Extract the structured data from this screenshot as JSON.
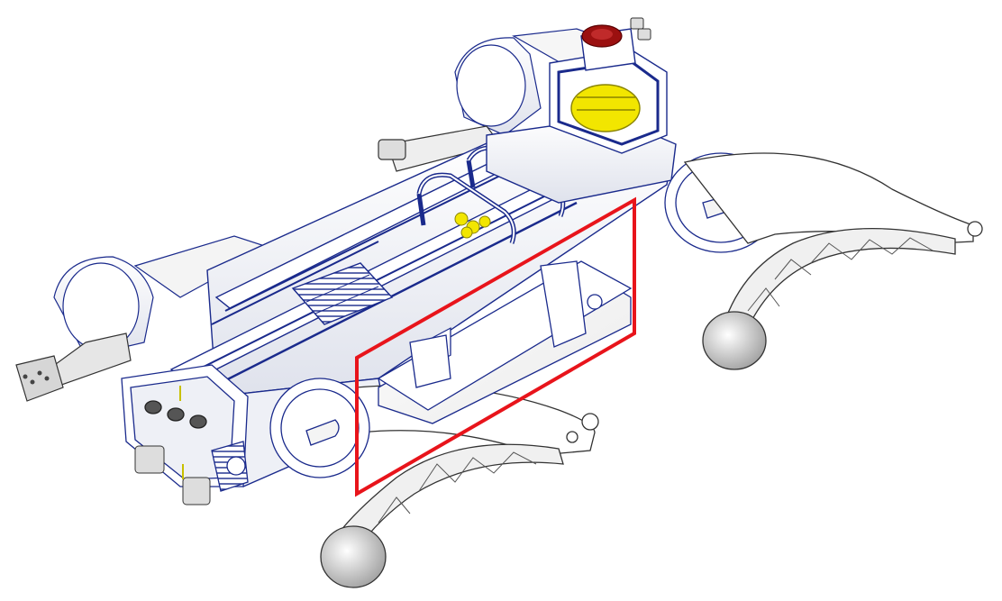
{
  "figure": {
    "subject": "quadruped-robot-isometric-cad-render",
    "highlight": {
      "color": "#e8141b",
      "target": "battery-module"
    },
    "colors": {
      "outline": "#1a2a8c",
      "body": "#f4f5f8",
      "shade": "#d8dbe6",
      "accent": "#f2e600",
      "emergency_stop": "#9b1010",
      "leg_dark": "#3a3a3a"
    }
  }
}
